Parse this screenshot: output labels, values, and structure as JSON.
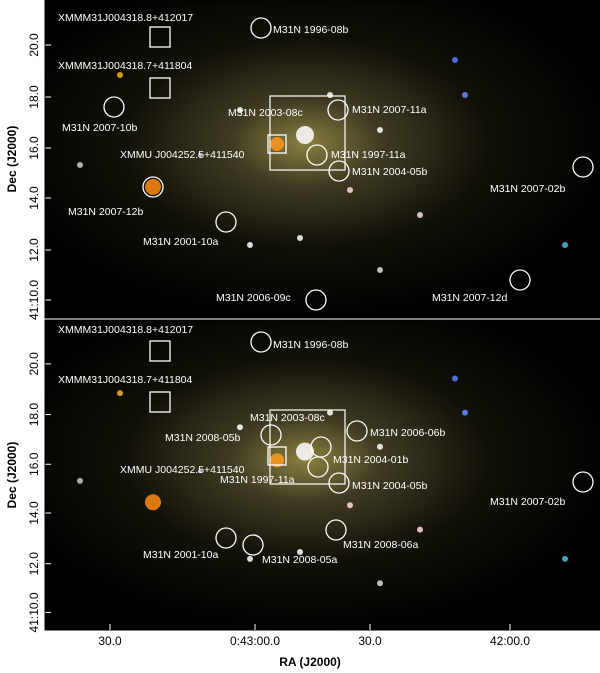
{
  "figure": {
    "xlabel": "RA (J2000)",
    "ylabel": "Dec (J2000)",
    "xticks": [
      "30.0",
      "0:43:00.0",
      "30.0",
      "42:00.0"
    ],
    "panels": [
      {
        "yticks": [
          "20.0",
          "18.0",
          "16.0",
          "14.0",
          "12.0",
          "41:10.0"
        ],
        "annotations": [
          "XMMM31J004318.8+412017",
          "XMMM31J004318.7+411804",
          "M31N 1996-08b",
          "M31N 2007-10b",
          "M31N 2003-08c",
          "M31N 2007-11a",
          "XMMU J004252.5+411540",
          "M31N 1997-11a",
          "M31N 2004-05b",
          "M31N 2007-02b",
          "M31N 2007-12b",
          "M31N 2001-10a",
          "M31N 2007-12d",
          "M31N 2006-09c"
        ]
      },
      {
        "yticks": [
          "20.0",
          "18.0",
          "16.0",
          "14.0",
          "12.0",
          "41:10.0"
        ],
        "annotations": [
          "XMMM31J004318.8+412017",
          "XMMM31J004318.7+411804",
          "M31N 1996-08b",
          "M31N 2003-08c",
          "M31N 2008-05b",
          "M31N 2006-06b",
          "M31N 2004-01b",
          "XMMU J004252.5+411540",
          "M31N 1997-11a",
          "M31N 2004-05b",
          "M31N 2007-02b",
          "M31N 2001-10a",
          "M31N 2008-05a",
          "M31N 2008-06a"
        ]
      }
    ]
  }
}
